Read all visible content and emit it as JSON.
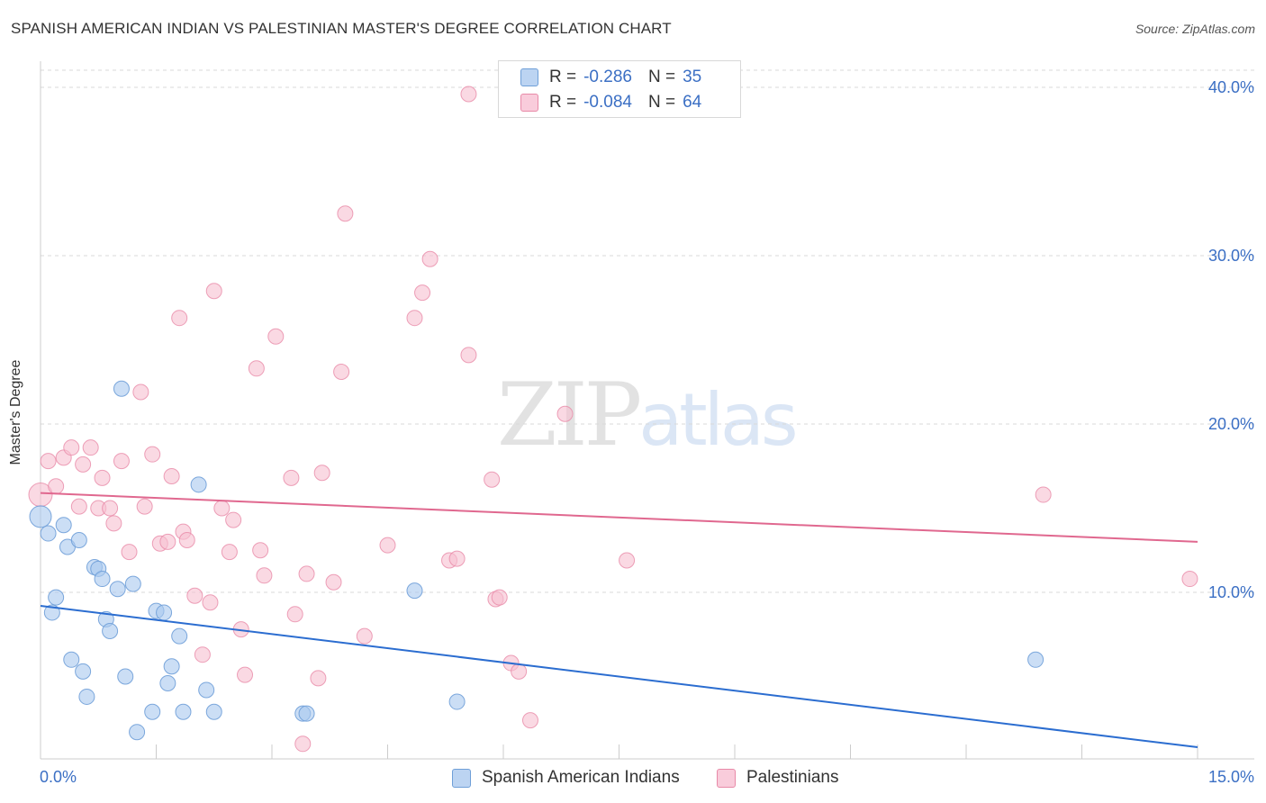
{
  "header": {
    "title": "SPANISH AMERICAN INDIAN VS PALESTINIAN MASTER'S DEGREE CORRELATION CHART",
    "source": "Source: ZipAtlas.com"
  },
  "watermark": {
    "zip": "ZIP",
    "atlas": "atlas"
  },
  "legend_top": {
    "rows": [
      {
        "r_label": "R =",
        "r_value": "-0.286",
        "n_label": "N =",
        "n_value": "35"
      },
      {
        "r_label": "R =",
        "r_value": "-0.084",
        "n_label": "N =",
        "n_value": "64"
      }
    ]
  },
  "legend_bottom": {
    "items": [
      {
        "label": "Spanish American Indians"
      },
      {
        "label": "Palestinians"
      }
    ]
  },
  "colors": {
    "blue_fill": "#a9c8ee",
    "blue_stroke": "#6f9fd8",
    "blue_line": "#2b6dd0",
    "pink_fill": "#f6c0d1",
    "pink_stroke": "#e88aa8",
    "pink_line": "#e0688f",
    "tick_text": "#3b6fc4",
    "grid": "#d9d9d9"
  },
  "chart_data": {
    "type": "scatter",
    "title": "SPANISH AMERICAN INDIAN VS PALESTINIAN MASTER'S DEGREE CORRELATION CHART",
    "xlabel": "",
    "ylabel": "Master's Degree",
    "xlim": [
      0,
      15
    ],
    "ylim": [
      0,
      40
    ],
    "x_tick_labels": [
      "0.0%",
      "15.0%"
    ],
    "y_ticks": [
      10,
      20,
      30,
      40
    ],
    "y_tick_labels": [
      "10.0%",
      "20.0%",
      "30.0%",
      "40.0%"
    ],
    "grid": true,
    "legend_position": "bottom",
    "series": [
      {
        "name": "Spanish American Indians",
        "color": "#a9c8ee",
        "r": -0.286,
        "n": 35,
        "trend": {
          "x": [
            0,
            15
          ],
          "y": [
            9.2,
            0.8
          ]
        },
        "points": [
          [
            0.0,
            14.5
          ],
          [
            0.1,
            13.5
          ],
          [
            0.15,
            8.8
          ],
          [
            0.2,
            9.7
          ],
          [
            0.3,
            14.0
          ],
          [
            0.35,
            12.7
          ],
          [
            0.4,
            6.0
          ],
          [
            0.5,
            13.1
          ],
          [
            0.55,
            5.3
          ],
          [
            0.6,
            3.8
          ],
          [
            0.7,
            11.5
          ],
          [
            0.75,
            11.4
          ],
          [
            0.8,
            10.8
          ],
          [
            0.85,
            8.4
          ],
          [
            0.9,
            7.7
          ],
          [
            1.0,
            10.2
          ],
          [
            1.05,
            22.1
          ],
          [
            1.1,
            5.0
          ],
          [
            1.2,
            10.5
          ],
          [
            1.25,
            1.7
          ],
          [
            1.45,
            2.9
          ],
          [
            1.5,
            8.9
          ],
          [
            1.6,
            8.8
          ],
          [
            1.65,
            4.6
          ],
          [
            1.7,
            5.6
          ],
          [
            1.8,
            7.4
          ],
          [
            1.85,
            2.9
          ],
          [
            2.05,
            16.4
          ],
          [
            2.15,
            4.2
          ],
          [
            2.25,
            2.9
          ],
          [
            3.4,
            2.8
          ],
          [
            3.45,
            2.8
          ],
          [
            4.85,
            10.1
          ],
          [
            5.4,
            3.5
          ],
          [
            12.9,
            6.0
          ]
        ]
      },
      {
        "name": "Palestinians",
        "color": "#f6c0d1",
        "r": -0.084,
        "n": 64,
        "trend": {
          "x": [
            0,
            15
          ],
          "y": [
            15.9,
            13.0
          ]
        },
        "points": [
          [
            0.0,
            15.8
          ],
          [
            0.1,
            17.8
          ],
          [
            0.2,
            16.3
          ],
          [
            0.3,
            18.0
          ],
          [
            0.4,
            18.6
          ],
          [
            0.5,
            15.1
          ],
          [
            0.55,
            17.6
          ],
          [
            0.65,
            18.6
          ],
          [
            0.75,
            15.0
          ],
          [
            0.8,
            16.8
          ],
          [
            0.9,
            15.0
          ],
          [
            0.95,
            14.1
          ],
          [
            1.05,
            17.8
          ],
          [
            1.15,
            12.4
          ],
          [
            1.3,
            21.9
          ],
          [
            1.35,
            15.1
          ],
          [
            1.45,
            18.2
          ],
          [
            1.55,
            12.9
          ],
          [
            1.65,
            13.0
          ],
          [
            1.7,
            16.9
          ],
          [
            1.8,
            26.3
          ],
          [
            1.85,
            13.6
          ],
          [
            1.9,
            13.1
          ],
          [
            2.0,
            9.8
          ],
          [
            2.1,
            6.3
          ],
          [
            2.2,
            9.4
          ],
          [
            2.25,
            27.9
          ],
          [
            2.35,
            15.0
          ],
          [
            2.45,
            12.4
          ],
          [
            2.5,
            14.3
          ],
          [
            2.6,
            7.8
          ],
          [
            2.65,
            5.1
          ],
          [
            2.8,
            23.3
          ],
          [
            2.85,
            12.5
          ],
          [
            2.9,
            11.0
          ],
          [
            3.05,
            25.2
          ],
          [
            3.25,
            16.8
          ],
          [
            3.3,
            8.7
          ],
          [
            3.45,
            11.1
          ],
          [
            3.6,
            4.9
          ],
          [
            3.65,
            17.1
          ],
          [
            3.8,
            10.6
          ],
          [
            3.9,
            23.1
          ],
          [
            3.95,
            32.5
          ],
          [
            4.2,
            7.4
          ],
          [
            4.5,
            12.8
          ],
          [
            4.85,
            26.3
          ],
          [
            4.95,
            27.8
          ],
          [
            5.05,
            29.8
          ],
          [
            5.3,
            11.9
          ],
          [
            5.4,
            12.0
          ],
          [
            5.55,
            24.1
          ],
          [
            5.55,
            39.6
          ],
          [
            5.85,
            16.7
          ],
          [
            5.9,
            9.6
          ],
          [
            5.95,
            9.7
          ],
          [
            6.1,
            5.8
          ],
          [
            6.2,
            5.3
          ],
          [
            6.35,
            2.4
          ],
          [
            6.8,
            20.6
          ],
          [
            7.6,
            11.9
          ],
          [
            13.0,
            15.8
          ],
          [
            14.9,
            10.8
          ],
          [
            3.4,
            1.0
          ]
        ]
      }
    ]
  }
}
